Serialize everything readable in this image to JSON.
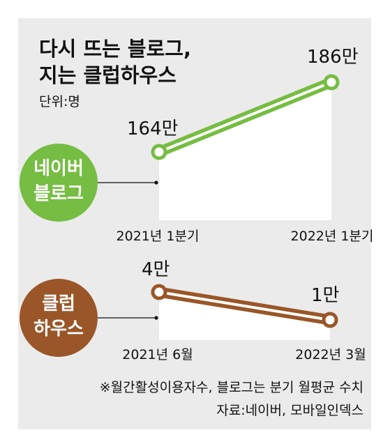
{
  "title_lines": [
    "다시 뜨는 블로그,",
    "지는 클럽하우스"
  ],
  "unit": "단위:명",
  "colors": {
    "naver": "#76bd43",
    "clubhouse": "#9a5628",
    "panel": "#ebebeb"
  },
  "chart_data": [
    {
      "type": "line",
      "series": [
        {
          "name": "네이버 블로그",
          "label_lines": [
            "네이버",
            "블로그"
          ],
          "values": [
            164,
            186
          ],
          "value_labels": [
            "164만",
            "186만"
          ]
        }
      ],
      "categories": [
        "2021년 1분기",
        "2022년 1분기"
      ],
      "unit": "만 명"
    },
    {
      "type": "line",
      "series": [
        {
          "name": "클럽 하우스",
          "label_lines": [
            "클럽",
            "하우스"
          ],
          "values": [
            4,
            1
          ],
          "value_labels": [
            "4만",
            "1만"
          ]
        }
      ],
      "categories": [
        "2021년 6월",
        "2022년 3월"
      ],
      "unit": "만 명"
    }
  ],
  "footnote": "※월간활성이용자수, 블로그는 분기 월평균 수치",
  "source": "자료:네이버, 모바일인덱스"
}
